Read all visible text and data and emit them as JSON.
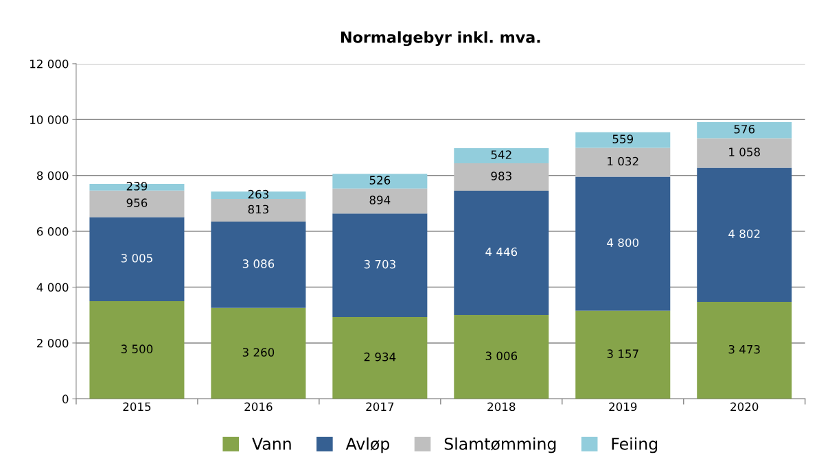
{
  "chart_data": {
    "type": "bar",
    "title": "Normalgebyr inkl. mva.",
    "stacked": true,
    "categories": [
      "2015",
      "2016",
      "2017",
      "2018",
      "2019",
      "2020"
    ],
    "series": [
      {
        "name": "Vann",
        "color": "#86a44a",
        "values": [
          3500,
          3260,
          2934,
          3006,
          3157,
          3473
        ],
        "value_labels": [
          "3 500",
          "3 260",
          "2 934",
          "3 006",
          "3 157",
          "3 473"
        ]
      },
      {
        "name": "Avløp",
        "color": "#366092",
        "values": [
          3005,
          3086,
          3703,
          4446,
          4800,
          4802
        ],
        "value_labels": [
          "3 005",
          "3 086",
          "3 703",
          "4 446",
          "4 800",
          "4 802"
        ]
      },
      {
        "name": "Slamtømming",
        "color": "#bfbfbf",
        "values": [
          956,
          813,
          894,
          983,
          1032,
          1058
        ],
        "value_labels": [
          "956",
          "813",
          "894",
          "983",
          "1 032",
          "1 058"
        ]
      },
      {
        "name": "Feiing",
        "color": "#92cddc",
        "values": [
          239,
          263,
          526,
          542,
          559,
          576
        ],
        "value_labels": [
          "239",
          "263",
          "526",
          "542",
          "559",
          "576"
        ]
      }
    ],
    "ylim": [
      0,
      12000
    ],
    "yticks": [
      0,
      {
        "value": 2000,
        "label": "2 000"
      },
      {
        "value": 4000,
        "label": "4 000"
      },
      {
        "value": 6000,
        "label": "6 000"
      },
      {
        "value": 8000,
        "label": "8 000"
      },
      {
        "value": 10000,
        "label": "10 000"
      },
      {
        "value": 12000,
        "label": "12 000"
      }
    ],
    "grid": "y",
    "legend": "bottom"
  }
}
